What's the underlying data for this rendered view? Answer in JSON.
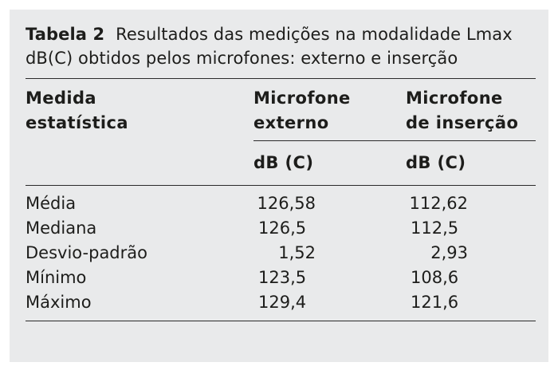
{
  "table": {
    "label": "Tabela 2",
    "caption_line1": "Resultados das medições na modalidade Lmax",
    "caption_line2": "dB(C) obtidos pelos microfones: externo e inserção",
    "headers": {
      "col1_line1": "Medida",
      "col1_line2": "estatística",
      "col2_line1": "Microfone",
      "col2_line2": "externo",
      "col3_line1": "Microfone",
      "col3_line2": "de inserção",
      "col2_unit": "dB (C)",
      "col3_unit": "dB (C)"
    },
    "rows": [
      {
        "measure": "Média",
        "external": "126,58",
        "insertion": "112,62"
      },
      {
        "measure": "Mediana",
        "external": "126,5",
        "insertion": "112,5"
      },
      {
        "measure": "Desvio-padrão",
        "external": "1,52",
        "insertion": "2,93"
      },
      {
        "measure": "Mínimo",
        "external": "123,5",
        "insertion": "108,6"
      },
      {
        "measure": "Máximo",
        "external": "129,4",
        "insertion": "121,6"
      }
    ]
  }
}
